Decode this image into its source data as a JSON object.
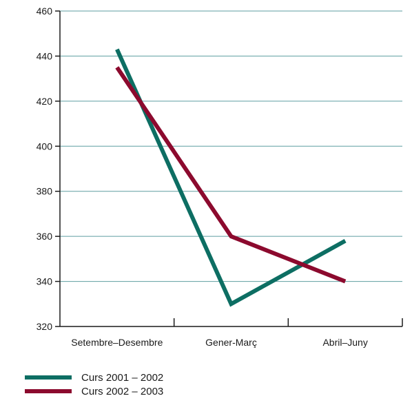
{
  "chart_data": {
    "type": "line",
    "categories": [
      "Setembre–Desembre",
      "Gener-Març",
      "Abril–Juny"
    ],
    "series": [
      {
        "name": "Curs 2001 – 2002",
        "values": [
          443,
          330,
          358
        ],
        "color": "#0d6e63"
      },
      {
        "name": "Curs 2002 – 2003",
        "values": [
          435,
          360,
          340
        ],
        "color": "#8c0a2e"
      }
    ],
    "ylim": [
      320,
      460
    ],
    "yticks": [
      320,
      340,
      360,
      380,
      400,
      420,
      440,
      460
    ],
    "grid": true,
    "grid_color": "#5e9ea0",
    "legend_position": "bottom-left"
  }
}
